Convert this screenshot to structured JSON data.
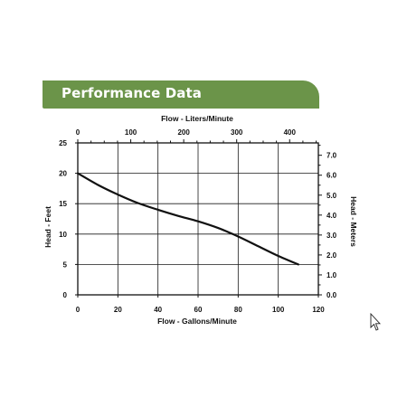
{
  "header": {
    "title": "Performance Data"
  },
  "chart_data": {
    "type": "line",
    "title": "",
    "xlabel": "Flow - Gallons/Minute",
    "ylabel": "Head - Feet",
    "x2label": "Flow - Liters/Minute",
    "y2label": "Head - Meters",
    "xlim": [
      0,
      120
    ],
    "ylim": [
      0,
      25
    ],
    "x2lim": [
      0,
      454.2
    ],
    "y2lim": [
      0,
      7.62
    ],
    "x_ticks": [
      0,
      20,
      40,
      60,
      80,
      100,
      120
    ],
    "y_ticks": [
      0,
      5,
      10,
      15,
      20,
      25
    ],
    "x2_ticks": [
      0,
      100,
      200,
      300,
      400
    ],
    "y2_ticks": [
      0,
      1,
      2,
      3,
      4,
      5,
      6,
      7
    ],
    "x_tick_labels": [
      "0",
      "20",
      "40",
      "60",
      "80",
      "100",
      "120"
    ],
    "y_tick_labels": [
      "0",
      "5",
      "10",
      "15",
      "20",
      "25"
    ],
    "x2_tick_labels": [
      "0",
      "100",
      "200",
      "300",
      "400"
    ],
    "y2_tick_labels": [
      "0.0",
      "1.0",
      "2.0",
      "3.0",
      "4.0",
      "5.0",
      "6.0",
      "7.0"
    ],
    "grid": true,
    "series": [
      {
        "x": [
          0,
          10,
          20,
          30,
          40,
          50,
          60,
          70,
          80,
          90,
          100,
          110
        ],
        "y": [
          20,
          18.1,
          16.5,
          15.1,
          14.0,
          13.0,
          12.1,
          11.0,
          9.6,
          8.0,
          6.4,
          5.0
        ],
        "color": "#111111"
      }
    ]
  }
}
